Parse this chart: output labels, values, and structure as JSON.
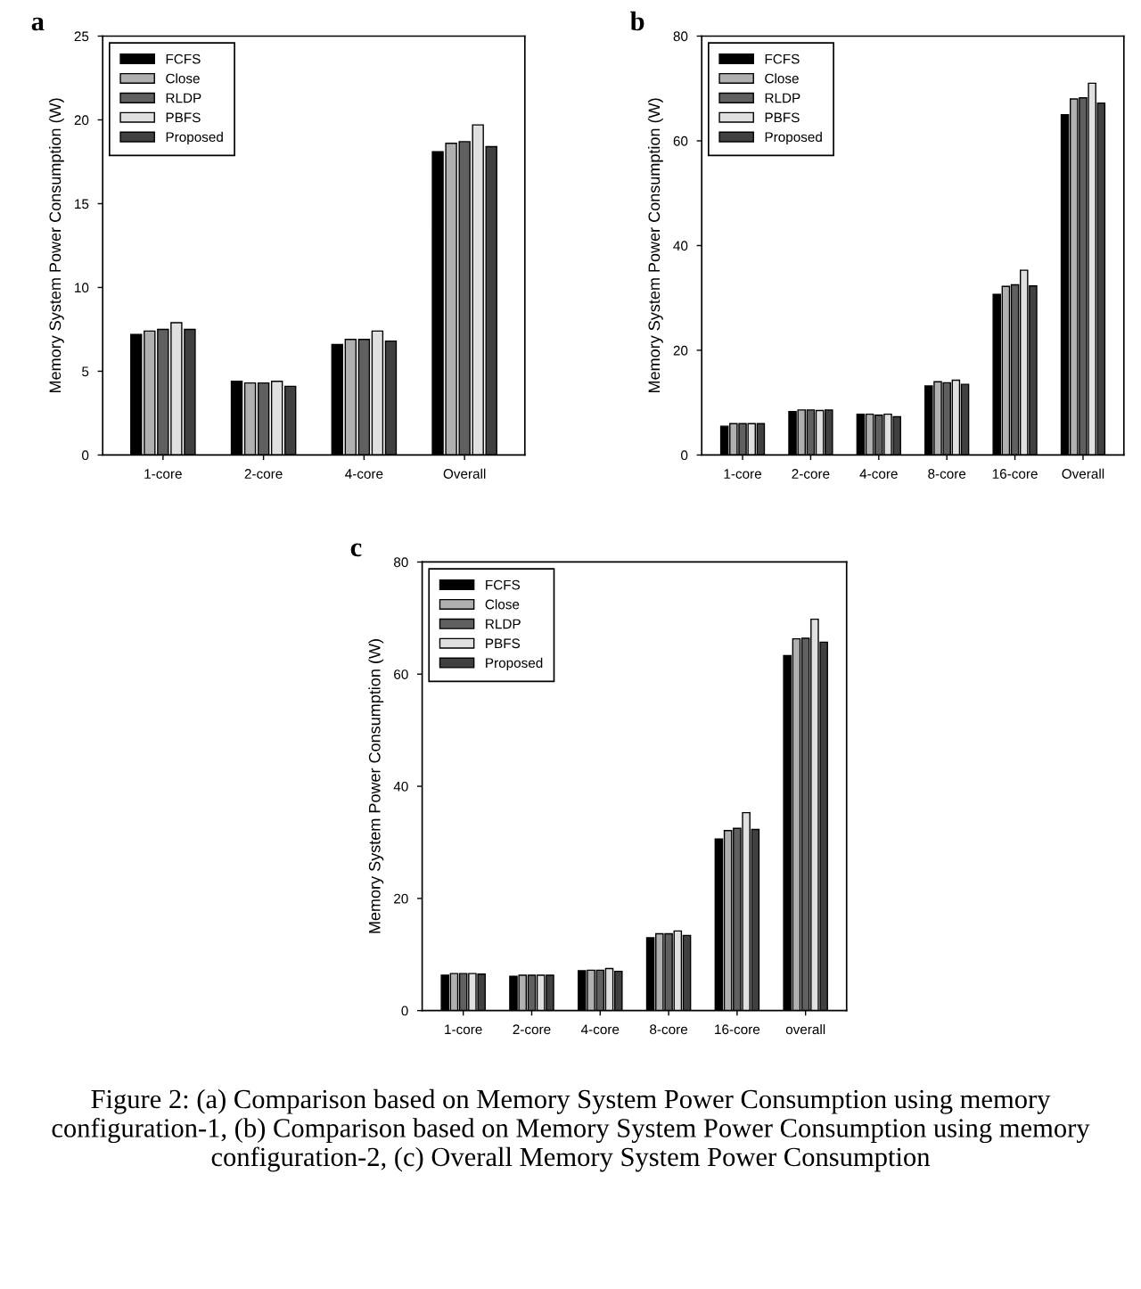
{
  "chart_data": [
    {
      "type": "bar",
      "title": "a",
      "ylabel": "Memory System Power Consumption (W)",
      "categories": [
        "1-core",
        "2-core",
        "4-core",
        "Overall"
      ],
      "ylim": [
        0,
        25
      ],
      "yticks": [
        0,
        5,
        10,
        15,
        20,
        25
      ],
      "legend": "top left",
      "grid": false,
      "series": [
        {
          "name": "FCFS",
          "color": "#000000",
          "values": [
            7.2,
            4.4,
            6.6,
            18.1
          ]
        },
        {
          "name": "Close",
          "color": "#b0b0b0",
          "values": [
            7.4,
            4.3,
            6.9,
            18.6
          ]
        },
        {
          "name": "RLDP",
          "color": "#606060",
          "values": [
            7.5,
            4.3,
            6.9,
            18.7
          ]
        },
        {
          "name": "PBFS",
          "color": "#e0e0e0",
          "values": [
            7.9,
            4.4,
            7.4,
            19.7
          ]
        },
        {
          "name": "Proposed",
          "color": "#404040",
          "values": [
            7.5,
            4.1,
            6.8,
            18.4
          ]
        }
      ]
    },
    {
      "type": "bar",
      "title": "b",
      "ylabel": "Memory System Power Consumption (W)",
      "categories": [
        "1-core",
        "2-core",
        "4-core",
        "8-core",
        "16-core",
        "Overall"
      ],
      "ylim": [
        0,
        80
      ],
      "yticks": [
        0,
        20,
        40,
        60,
        80
      ],
      "legend": "top left",
      "grid": false,
      "series": [
        {
          "name": "FCFS",
          "color": "#000000",
          "values": [
            5.5,
            8.3,
            7.8,
            13.2,
            30.7,
            65
          ]
        },
        {
          "name": "Close",
          "color": "#b0b0b0",
          "values": [
            6,
            8.6,
            7.8,
            14,
            32.2,
            68
          ]
        },
        {
          "name": "RLDP",
          "color": "#606060",
          "values": [
            6,
            8.6,
            7.6,
            13.8,
            32.5,
            68.2
          ]
        },
        {
          "name": "PBFS",
          "color": "#e0e0e0",
          "values": [
            6,
            8.5,
            7.8,
            14.3,
            35.3,
            71
          ]
        },
        {
          "name": "Proposed",
          "color": "#404040",
          "values": [
            6,
            8.6,
            7.3,
            13.5,
            32.3,
            67.2
          ]
        }
      ]
    },
    {
      "type": "bar",
      "title": "c",
      "ylabel": "Memory System Power Consumption (W)",
      "categories": [
        "1-core",
        "2-core",
        "4-core",
        "8-core",
        "16-core",
        "overall"
      ],
      "ylim": [
        0,
        80
      ],
      "yticks": [
        0,
        20,
        40,
        60,
        80
      ],
      "legend": "top left",
      "grid": false,
      "annotations": [
        "Figure 2: (a) Comparison based on Memory System Power Consumption using memory configuration-1, (b) Comparison based on Memory System Power Consumption using memory configuration-2, (c) Overall Memory System Power Consumption"
      ],
      "series": [
        {
          "name": "FCFS",
          "color": "#000000",
          "values": [
            6.3,
            6.1,
            7.1,
            13,
            30.6,
            63.3
          ]
        },
        {
          "name": "Close",
          "color": "#b0b0b0",
          "values": [
            6.6,
            6.3,
            7.2,
            13.7,
            32.1,
            66.3
          ]
        },
        {
          "name": "RLDP",
          "color": "#606060",
          "values": [
            6.6,
            6.3,
            7.2,
            13.7,
            32.5,
            66.4
          ]
        },
        {
          "name": "PBFS",
          "color": "#e0e0e0",
          "values": [
            6.6,
            6.3,
            7.5,
            14.2,
            35.3,
            69.8
          ]
        },
        {
          "name": "Proposed",
          "color": "#404040",
          "values": [
            6.5,
            6.3,
            7.0,
            13.4,
            32.3,
            65.7
          ]
        }
      ]
    }
  ]
}
